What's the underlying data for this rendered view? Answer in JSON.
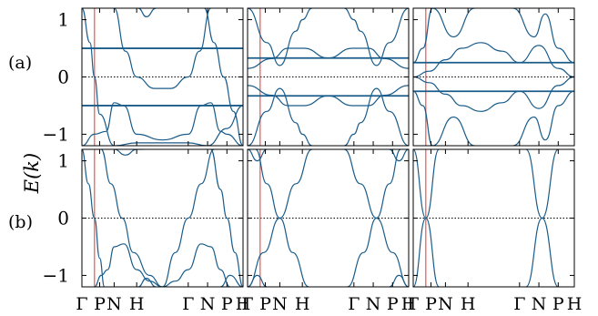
{
  "chart_data": {
    "type": "line",
    "ylabel": "E(k)",
    "ylim": [
      -1.2,
      1.2
    ],
    "yticks": [
      "1",
      "0",
      "−1"
    ],
    "row_labels": [
      "(a)",
      "(b)"
    ],
    "xticks": [
      {
        "label": "Γ",
        "at": 0.0
      },
      {
        "label": "P",
        "at": 0.11
      },
      {
        "label": "N",
        "at": 0.2
      },
      {
        "label": "H",
        "at": 0.34
      },
      {
        "label": "Γ",
        "at": 0.66
      },
      {
        "label": "N",
        "at": 0.78
      },
      {
        "label": "P",
        "at": 0.9
      },
      {
        "label": "H",
        "at": 1.0
      }
    ],
    "vline_x": 0.078,
    "colors": {
      "band": "#1a5c8a",
      "marker": "#e8554e",
      "zero": "#000000"
    },
    "panels": [
      {
        "row": 0,
        "col": 0,
        "flat_bands": [
          0.5,
          -0.5
        ],
        "bands": [
          {
            "x": [
              0.0,
              0.05,
              0.078,
              0.11,
              0.2,
              0.34,
              0.66,
              0.78,
              0.9,
              1.0
            ],
            "y": [
              1.2,
              0.6,
              0.0,
              -0.65,
              -1.2,
              -1.15,
              -1.15,
              -1.2,
              -0.9,
              -0.5
            ]
          },
          {
            "x": [
              0.0,
              0.078,
              0.15,
              0.2,
              0.26,
              0.34,
              0.5,
              0.66,
              0.74,
              0.8,
              0.86,
              0.9,
              1.0
            ],
            "y": [
              -1.2,
              -1.0,
              -0.95,
              -0.45,
              -0.5,
              -1.0,
              -1.1,
              -1.0,
              -0.5,
              -0.45,
              -0.95,
              -1.0,
              -1.2
            ]
          },
          {
            "x": [
              0.2,
              0.27,
              0.34,
              0.45,
              0.55,
              0.66,
              0.73,
              0.8
            ],
            "y": [
              1.2,
              0.45,
              0.0,
              -0.2,
              -0.2,
              0.0,
              0.45,
              1.2
            ]
          },
          {
            "x": [
              0.35,
              0.4,
              0.46
            ],
            "y": [
              1.2,
              1.05,
              1.2
            ]
          },
          {
            "x": [
              0.76,
              0.82,
              0.88,
              0.94,
              1.0
            ],
            "y": [
              1.2,
              0.6,
              0.0,
              -0.6,
              -1.2
            ]
          }
        ]
      },
      {
        "row": 0,
        "col": 1,
        "flat_bands": [
          0.33,
          -0.33
        ],
        "bands": [
          {
            "x": [
              0.0,
              0.15,
              0.25,
              0.35,
              0.5,
              0.65,
              0.75,
              0.85,
              1.0
            ],
            "y": [
              0.15,
              0.32,
              0.5,
              0.5,
              0.33,
              0.5,
              0.5,
              0.32,
              0.15
            ]
          },
          {
            "x": [
              0.0,
              0.15,
              0.25,
              0.35,
              0.5,
              0.65,
              0.75,
              0.85,
              1.0
            ],
            "y": [
              -0.15,
              -0.32,
              -0.5,
              -0.5,
              -0.33,
              -0.5,
              -0.5,
              -0.32,
              -0.15
            ]
          },
          {
            "x": [
              0.0,
              0.12,
              0.2,
              0.3,
              0.34,
              0.4
            ],
            "y": [
              1.2,
              0.6,
              0.2,
              0.8,
              1.0,
              1.2
            ]
          },
          {
            "x": [
              0.0,
              0.12,
              0.2,
              0.3,
              0.34,
              0.4
            ],
            "y": [
              -1.2,
              -0.6,
              -0.2,
              -0.8,
              -1.0,
              -1.2
            ]
          },
          {
            "x": [
              0.6,
              0.66,
              0.7,
              0.8,
              0.88,
              1.0
            ],
            "y": [
              1.2,
              1.0,
              0.8,
              0.2,
              0.6,
              1.2
            ]
          },
          {
            "x": [
              0.6,
              0.66,
              0.7,
              0.8,
              0.88,
              1.0
            ],
            "y": [
              -1.2,
              -1.0,
              -0.8,
              -0.2,
              -0.6,
              -1.2
            ]
          }
        ]
      },
      {
        "row": 0,
        "col": 2,
        "flat_bands": [
          0.25,
          -0.25
        ],
        "bands": [
          {
            "x": [
              0.0,
              0.1,
              0.2,
              0.3,
              0.42,
              0.55,
              0.66,
              0.78,
              0.9,
              1.0
            ],
            "y": [
              0.0,
              0.1,
              0.3,
              0.5,
              0.6,
              0.45,
              0.25,
              0.55,
              0.15,
              0.0
            ]
          },
          {
            "x": [
              0.0,
              0.1,
              0.2,
              0.3,
              0.42,
              0.55,
              0.66,
              0.78,
              0.9,
              1.0
            ],
            "y": [
              0.0,
              -0.1,
              -0.3,
              -0.5,
              -0.6,
              -0.45,
              -0.25,
              -0.55,
              -0.15,
              0.0
            ]
          },
          {
            "x": [
              0.0,
              0.06,
              0.12,
              0.25,
              0.38
            ],
            "y": [
              0.25,
              0.5,
              1.2,
              0.7,
              1.2
            ]
          },
          {
            "x": [
              0.0,
              0.06,
              0.12,
              0.25,
              0.38
            ],
            "y": [
              -0.25,
              -0.5,
              -1.2,
              -0.7,
              -1.2
            ]
          },
          {
            "x": [
              0.62,
              0.75,
              0.82,
              0.9,
              1.0
            ],
            "y": [
              1.2,
              0.7,
              1.1,
              0.5,
              0.25
            ]
          },
          {
            "x": [
              0.62,
              0.75,
              0.82,
              0.9,
              1.0
            ],
            "y": [
              -1.2,
              -0.7,
              -1.1,
              -0.5,
              -0.25
            ]
          }
        ]
      },
      {
        "row": 1,
        "col": 0,
        "flat_bands": [],
        "bands": [
          {
            "x": [
              0.0,
              0.04,
              0.078,
              0.11,
              0.14
            ],
            "y": [
              1.2,
              0.6,
              0.0,
              -0.7,
              -1.2
            ]
          },
          {
            "x": [
              0.078,
              0.12,
              0.16,
              0.2,
              0.26,
              0.34,
              0.42,
              0.5
            ],
            "y": [
              -1.2,
              -1.0,
              -0.9,
              -0.5,
              -0.45,
              -0.9,
              -1.1,
              -1.2
            ]
          },
          {
            "x": [
              0.12,
              0.18,
              0.25,
              0.32,
              0.42,
              0.5
            ],
            "y": [
              1.2,
              0.6,
              0.0,
              -0.6,
              -1.0,
              -1.2
            ]
          },
          {
            "x": [
              0.35,
              0.4,
              0.46
            ],
            "y": [
              -1.2,
              -1.05,
              -1.2
            ]
          },
          {
            "x": [
              0.2,
              0.27,
              0.34,
              0.38
            ],
            "y": [
              1.2,
              1.1,
              1.2,
              1.2
            ]
          },
          {
            "x": [
              0.5,
              0.58,
              0.66,
              0.74,
              0.8,
              0.86,
              0.92
            ],
            "y": [
              -1.2,
              -1.1,
              -0.9,
              -0.45,
              -0.5,
              -0.9,
              -1.2
            ]
          },
          {
            "x": [
              0.5,
              0.58,
              0.66,
              0.74,
              0.82
            ],
            "y": [
              -1.2,
              -0.6,
              0.0,
              0.6,
              1.2
            ]
          },
          {
            "x": [
              0.8,
              0.86,
              0.9,
              0.95,
              1.0
            ],
            "y": [
              1.2,
              0.5,
              0.0,
              -0.6,
              -1.2
            ]
          },
          {
            "x": [
              0.86,
              0.92,
              1.0
            ],
            "y": [
              -1.2,
              -1.0,
              -1.2
            ]
          }
        ]
      },
      {
        "row": 1,
        "col": 1,
        "flat_bands": [],
        "bands": [
          {
            "x": [
              0.0,
              0.1,
              0.2,
              0.3,
              0.4
            ],
            "y": [
              -1.2,
              -0.6,
              0.0,
              0.6,
              1.2
            ]
          },
          {
            "x": [
              0.05,
              0.12,
              0.2,
              0.28,
              0.38
            ],
            "y": [
              1.2,
              0.6,
              0.0,
              -0.6,
              -1.2
            ]
          },
          {
            "x": [
              0.0,
              0.06,
              0.12
            ],
            "y": [
              1.2,
              1.0,
              1.2
            ]
          },
          {
            "x": [
              0.0,
              0.06,
              0.12
            ],
            "y": [
              -1.2,
              -1.0,
              -1.2
            ]
          },
          {
            "x": [
              0.6,
              0.7,
              0.8,
              0.9,
              1.0
            ],
            "y": [
              1.2,
              0.6,
              0.0,
              -0.6,
              -1.2
            ]
          },
          {
            "x": [
              0.62,
              0.72,
              0.8,
              0.88,
              0.95
            ],
            "y": [
              -1.2,
              -0.6,
              0.0,
              0.6,
              1.2
            ]
          },
          {
            "x": [
              0.88,
              0.94,
              1.0
            ],
            "y": [
              1.2,
              1.0,
              1.2
            ]
          },
          {
            "x": [
              0.88,
              0.94,
              1.0
            ],
            "y": [
              -1.2,
              -1.0,
              -1.2
            ]
          }
        ]
      },
      {
        "row": 1,
        "col": 2,
        "flat_bands": [],
        "bands": [
          {
            "x": [
              0.0,
              0.078,
              0.16
            ],
            "y": [
              -1.2,
              0.0,
              1.2
            ]
          },
          {
            "x": [
              0.0,
              0.078,
              0.16
            ],
            "y": [
              1.2,
              0.0,
              -1.2
            ]
          },
          {
            "x": [
              0.7,
              0.8,
              0.9
            ],
            "y": [
              -1.2,
              0.0,
              1.2
            ]
          },
          {
            "x": [
              0.7,
              0.8,
              0.9
            ],
            "y": [
              1.2,
              0.0,
              -1.2
            ]
          }
        ]
      }
    ]
  }
}
